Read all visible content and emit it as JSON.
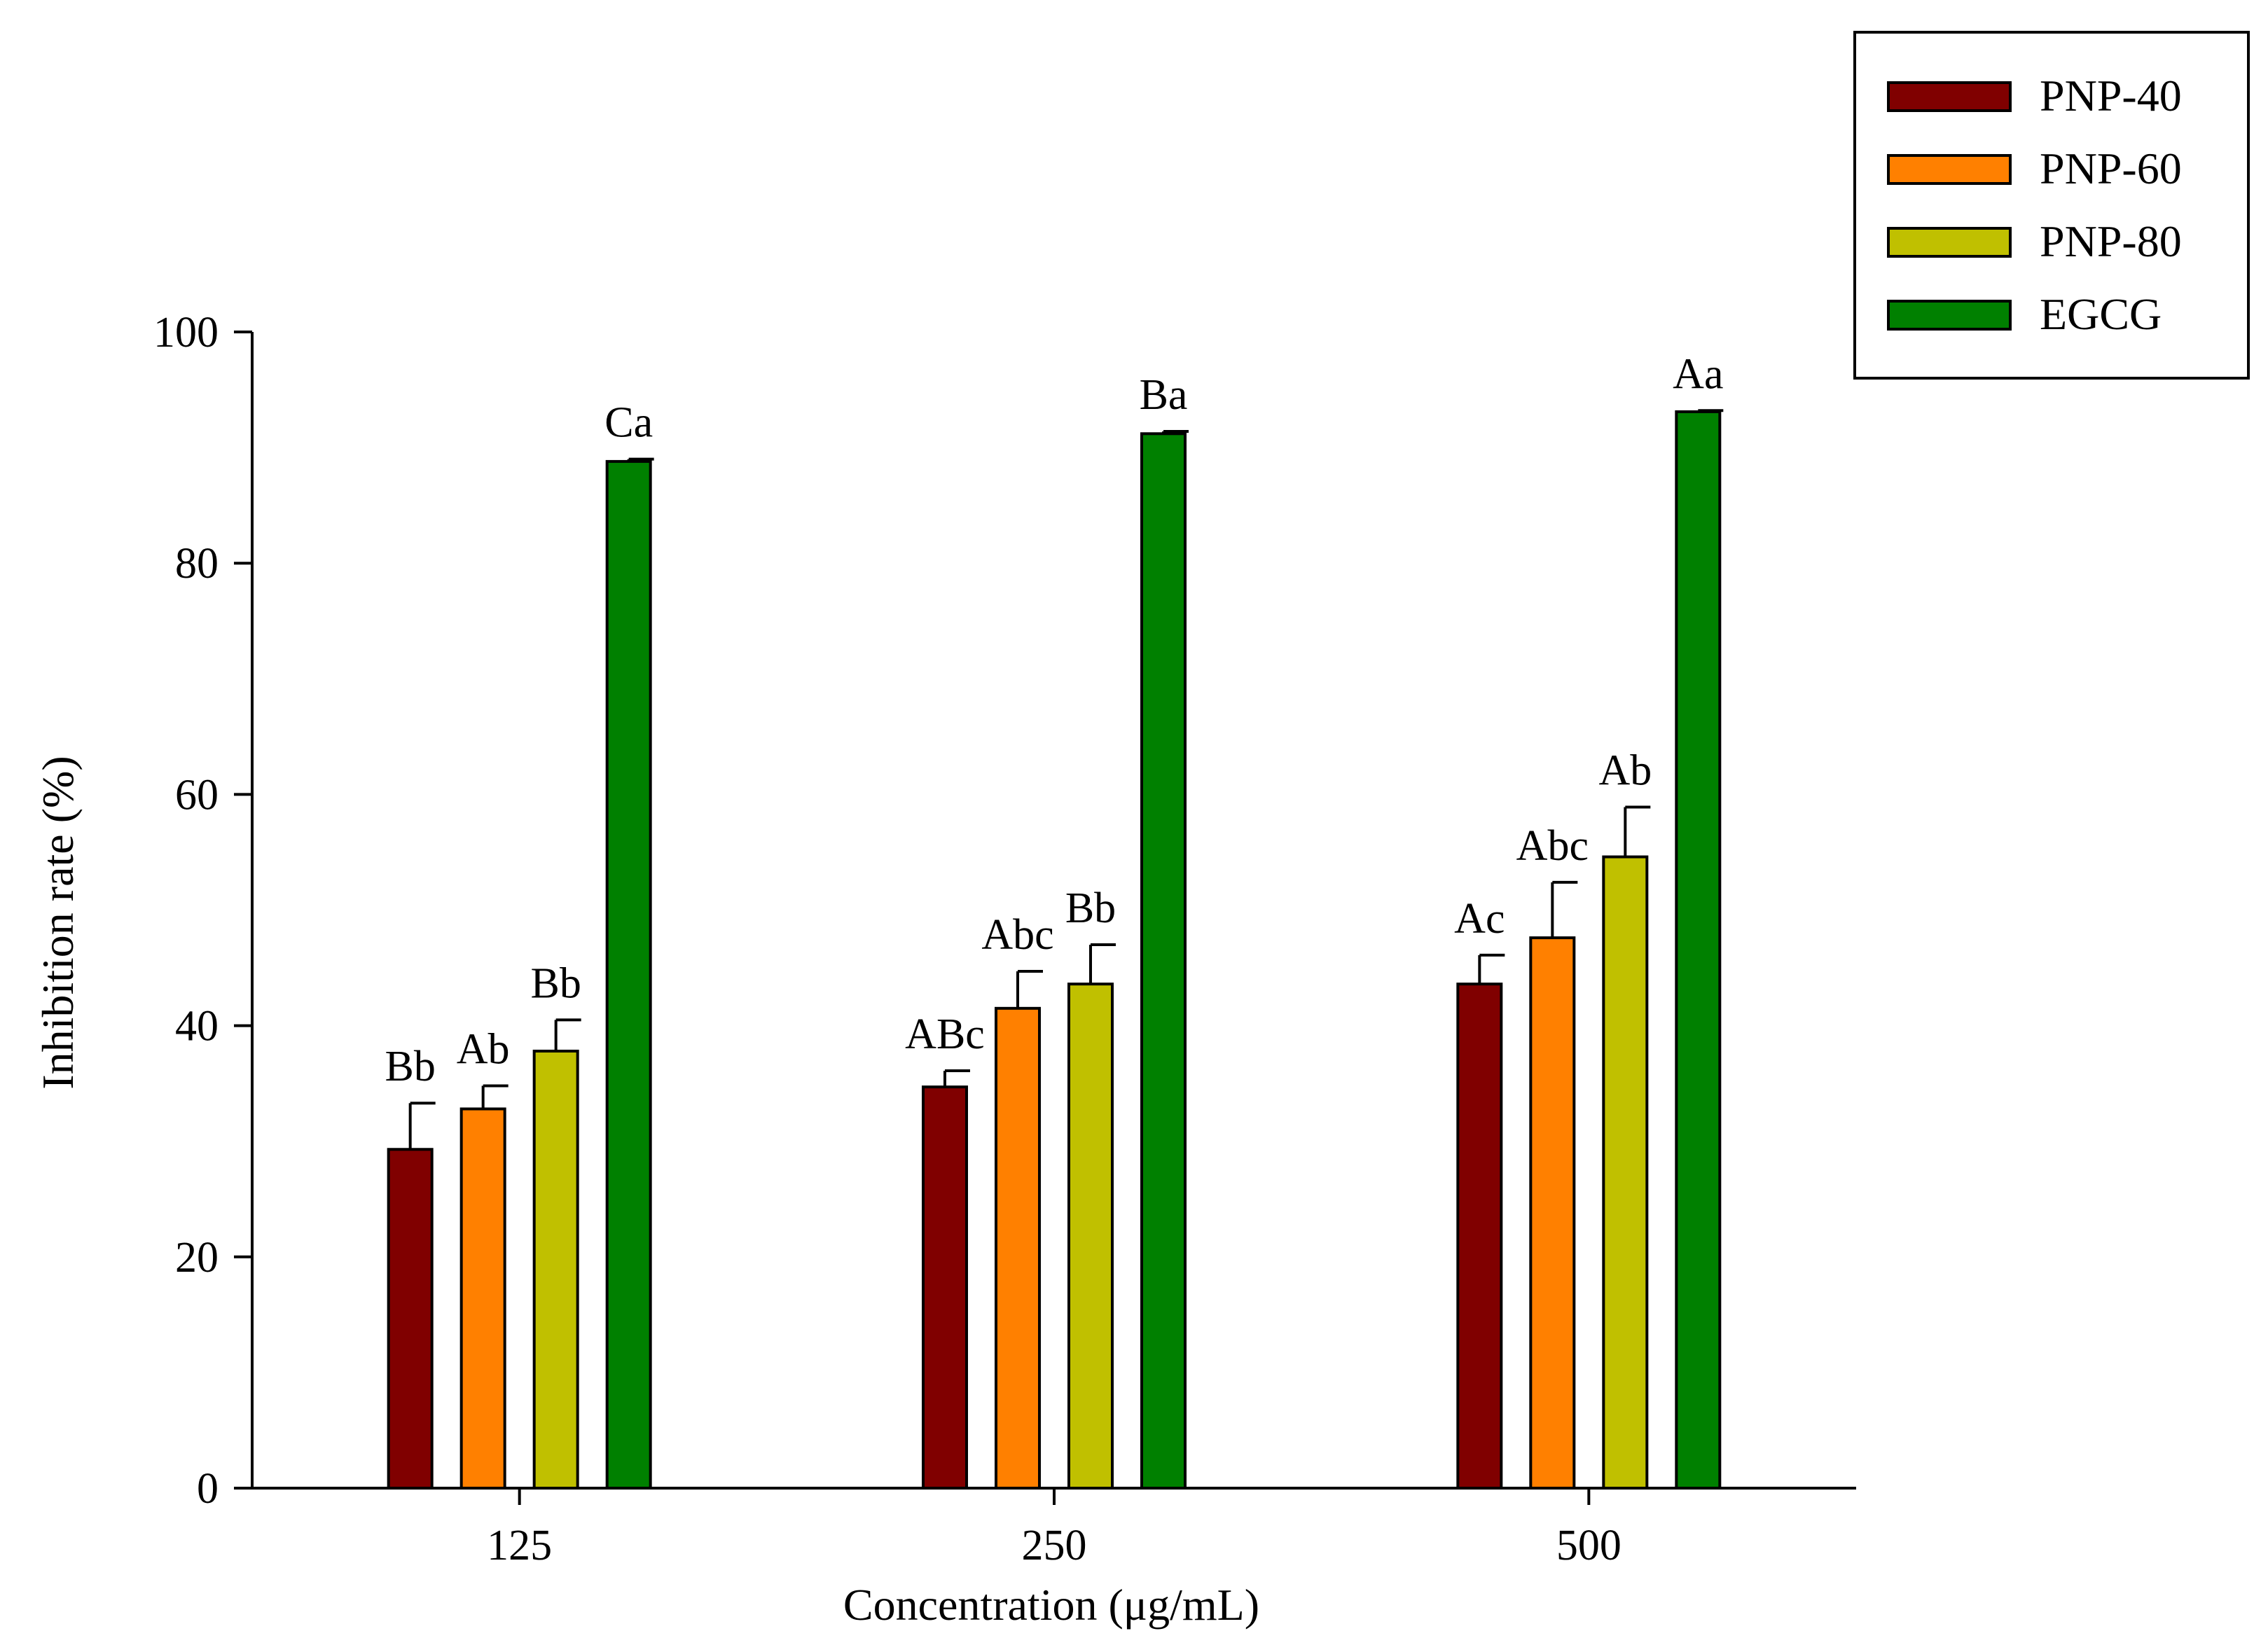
{
  "chart_data": {
    "type": "bar",
    "title": "",
    "xlabel": "Concentration (μg/mL)",
    "ylabel": "Inhibition rate (%)",
    "ylim": [
      0,
      100
    ],
    "yticks": [
      0,
      20,
      40,
      60,
      80,
      100
    ],
    "categories": [
      "125",
      "250",
      "500"
    ],
    "series": [
      {
        "name": "PNP-40",
        "color": "#800000",
        "values": [
          29.3,
          34.7,
          43.6
        ],
        "errors": [
          4.0,
          1.4,
          2.5
        ],
        "labels": [
          "Bb",
          "ABc",
          "Ac"
        ]
      },
      {
        "name": "PNP-60",
        "color": "#ff8000",
        "values": [
          32.8,
          41.5,
          47.6
        ],
        "errors": [
          2.0,
          3.2,
          4.8
        ],
        "labels": [
          "Ab",
          "Abc",
          "Abc"
        ]
      },
      {
        "name": "PNP-80",
        "color": "#c0c000",
        "values": [
          37.8,
          43.6,
          54.6
        ],
        "errors": [
          2.7,
          3.4,
          4.3
        ],
        "labels": [
          "Bb",
          "Bb",
          "Ab"
        ]
      },
      {
        "name": "EGCG",
        "color": "#008000",
        "values": [
          88.8,
          91.2,
          93.1
        ],
        "errors": [
          0.2,
          0.2,
          0.1
        ],
        "labels": [
          "Ca",
          "Ba",
          "Aa"
        ]
      }
    ],
    "legend_position": "top-right",
    "grid": false
  }
}
